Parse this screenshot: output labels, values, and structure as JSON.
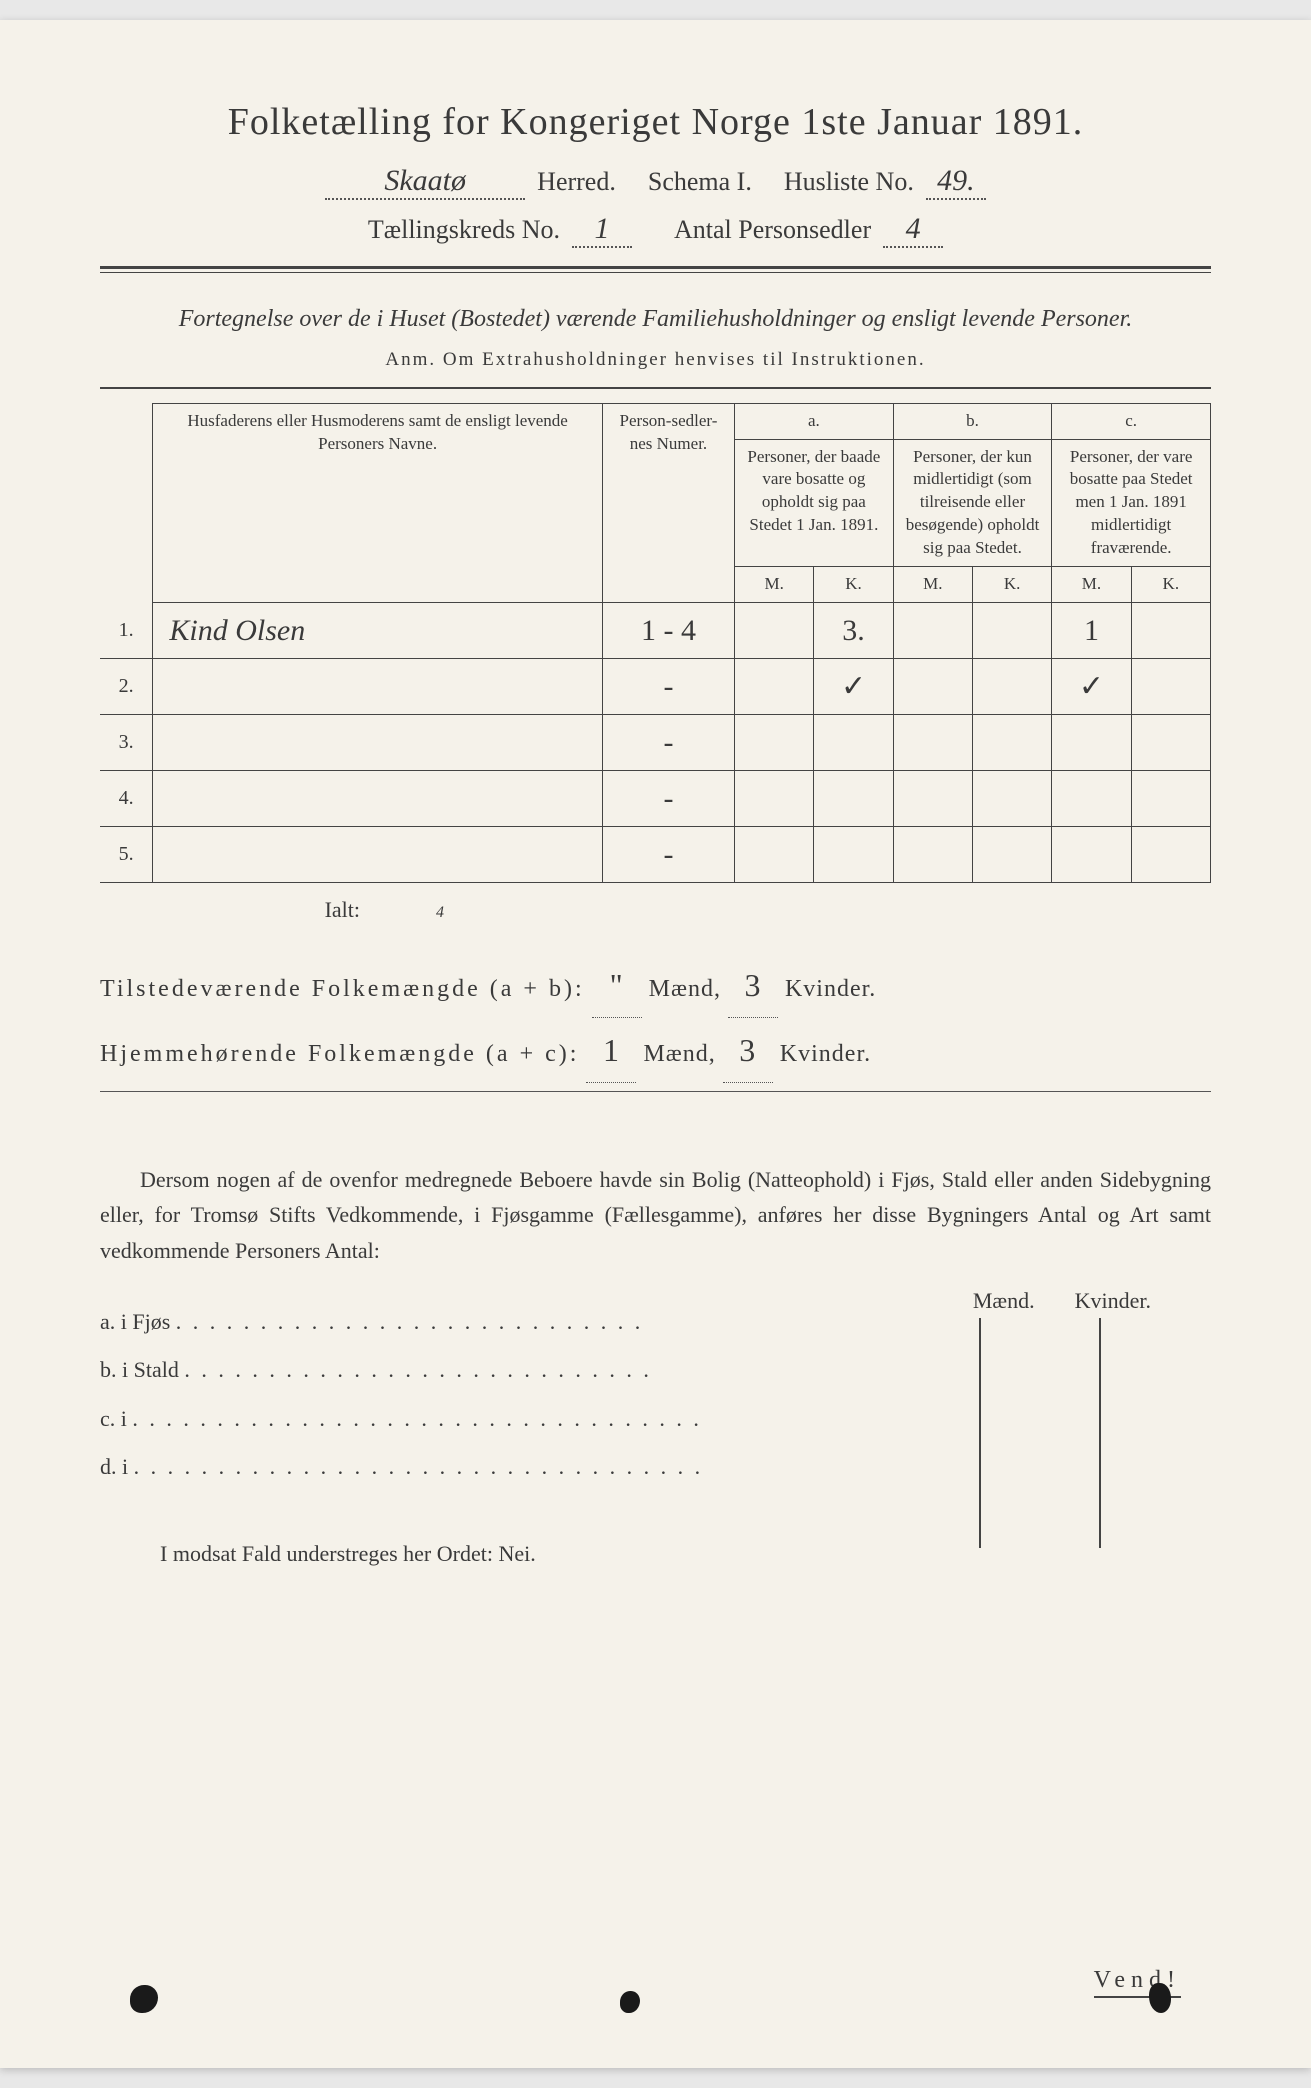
{
  "colors": {
    "paper": "#f5f2ea",
    "ink": "#3a3a3a",
    "rule": "#444444",
    "dotted": "#555555"
  },
  "title": "Folketælling for Kongeriget Norge 1ste Januar 1891.",
  "header": {
    "herred_value": "Skaatø",
    "herred_label": "Herred.",
    "schema_label": "Schema I.",
    "husliste_label": "Husliste No.",
    "husliste_value": "49.",
    "kreds_label": "Tællingskreds No.",
    "kreds_value": "1",
    "antal_label": "Antal Personsedler",
    "antal_value": "4"
  },
  "subtitle": "Fortegnelse over de i Huset (Bostedet) værende Familiehusholdninger og ensligt levende Personer.",
  "anm": "Anm.  Om Extrahusholdninger henvises til Instruktionen.",
  "table": {
    "head": {
      "names": "Husfaderens eller Husmoderens samt de ensligt levende Personers Navne.",
      "numer": "Person-sedler-nes Numer.",
      "a_top": "a.",
      "a": "Personer, der baade vare bosatte og opholdt sig paa Stedet 1 Jan. 1891.",
      "b_top": "b.",
      "b": "Personer, der kun midlertidigt (som tilreisende eller besøgende) opholdt sig paa Stedet.",
      "c_top": "c.",
      "c": "Personer, der vare bosatte paa Stedet men 1 Jan. 1891 midlertidigt fraværende.",
      "M": "M.",
      "K": "K."
    },
    "rows": [
      {
        "n": "1.",
        "name": "Kind Olsen",
        "numer": "1 - 4",
        "aM": "",
        "aK": "3.",
        "bM": "",
        "bK": "",
        "cM": "1",
        "cK": ""
      },
      {
        "n": "2.",
        "name": "",
        "numer": "-",
        "aM": "",
        "aK": "✓",
        "bM": "",
        "bK": "",
        "cM": "✓",
        "cK": ""
      },
      {
        "n": "3.",
        "name": "",
        "numer": "-",
        "aM": "",
        "aK": "",
        "bM": "",
        "bK": "",
        "cM": "",
        "cK": ""
      },
      {
        "n": "4.",
        "name": "",
        "numer": "-",
        "aM": "",
        "aK": "",
        "bM": "",
        "bK": "",
        "cM": "",
        "cK": ""
      },
      {
        "n": "5.",
        "name": "",
        "numer": "-",
        "aM": "",
        "aK": "",
        "bM": "",
        "bK": "",
        "cM": "",
        "cK": ""
      }
    ],
    "ialt_label": "Ialt:",
    "ialt_value": "4"
  },
  "totals": {
    "line1_label": "Tilstedeværende Folkemængde (a + b):",
    "line1_m": "\"",
    "line1_k": "3",
    "line2_label": "Hjemmehørende Folkemængde (a + c):",
    "line2_m": "1",
    "line2_k": "3",
    "maend": "Mænd,",
    "kvinder": "Kvinder."
  },
  "prose": "Dersom nogen af de ovenfor medregnede Beboere havde sin Bolig (Natteophold) i Fjøs, Stald eller anden Sidebygning eller, for Tromsø Stifts Vedkommende, i Fjøsgamme (Fællesgamme), anføres her disse Bygningers Antal og Art samt vedkommende Personers Antal:",
  "side": {
    "maend": "Mænd.",
    "kvinder": "Kvinder.",
    "a": "a.   i      Fjøs",
    "b": "b.   i      Stald",
    "c": "c.   i",
    "d": "d.   i"
  },
  "nei": "I modsat Fald understreges her Ordet: Nei.",
  "vend": "Vend!"
}
